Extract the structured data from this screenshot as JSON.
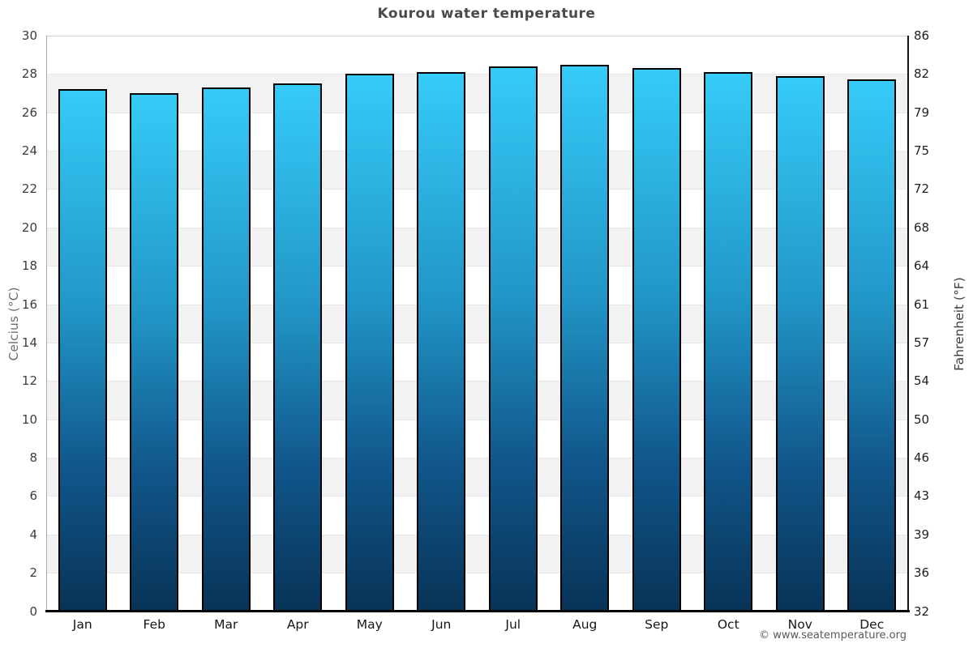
{
  "title": "Kourou water temperature",
  "axes": {
    "left_label": "Celcius (°C)",
    "right_label": "Fahrenheit (°F)"
  },
  "footer": {
    "copyright": "© www.seatemperature.org"
  },
  "colors": {
    "bar_gradient_top": "#36cbf8",
    "bar_gradient_bottom": "#083356",
    "bar_border": "#000000",
    "band_gray": "#f2f2f2",
    "band_white": "#ffffff",
    "title_text": "#4a4a4a"
  },
  "chart_data": {
    "type": "bar",
    "title": "Kourou water temperature",
    "categories": [
      "Jan",
      "Feb",
      "Mar",
      "Apr",
      "May",
      "Jun",
      "Jul",
      "Aug",
      "Sep",
      "Oct",
      "Nov",
      "Dec"
    ],
    "values": [
      27.2,
      27.0,
      27.3,
      27.5,
      28.0,
      28.1,
      28.4,
      28.5,
      28.3,
      28.1,
      27.9,
      27.7
    ],
    "unit": "°C",
    "xlabel": "",
    "ylabel_left": "Celcius (°C)",
    "ylabel_right": "Fahrenheit (°F)",
    "ylim": [
      0,
      30
    ],
    "celsius_ticks": [
      0,
      2,
      4,
      6,
      8,
      10,
      12,
      14,
      16,
      18,
      20,
      22,
      24,
      26,
      28,
      30
    ],
    "fahrenheit_ticks": [
      32,
      36,
      39,
      43,
      46,
      50,
      54,
      57,
      61,
      64,
      68,
      72,
      75,
      79,
      82,
      86
    ],
    "grid": "alternating horizontal bands every 2°C",
    "legend": "none"
  }
}
